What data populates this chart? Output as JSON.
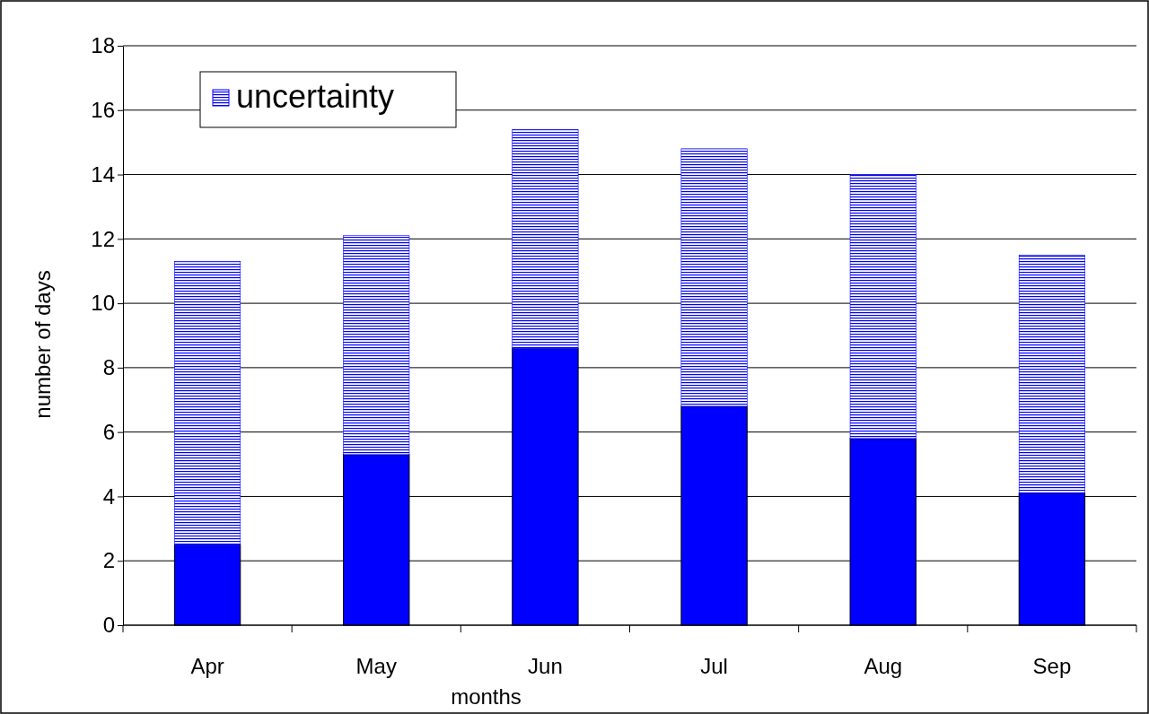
{
  "chart_data": {
    "type": "bar",
    "stacked": true,
    "xlabel": "months",
    "ylabel": "number of days",
    "categories": [
      "Apr",
      "May",
      "Jun",
      "Jul",
      "Aug",
      "Sep"
    ],
    "series": [
      {
        "color": "#0000ff",
        "values": [
          2.5,
          5.3,
          8.6,
          6.8,
          5.8,
          4.1
        ]
      },
      {
        "name": "uncertainty",
        "color": "#0000ff",
        "values": [
          8.8,
          6.8,
          6.8,
          8.0,
          8.2,
          7.4
        ]
      }
    ],
    "ylim": [
      0,
      18
    ],
    "yticks": [
      0,
      2,
      4,
      6,
      8,
      10,
      12,
      14,
      16,
      18
    ],
    "grid": "y",
    "legend": "top left"
  }
}
